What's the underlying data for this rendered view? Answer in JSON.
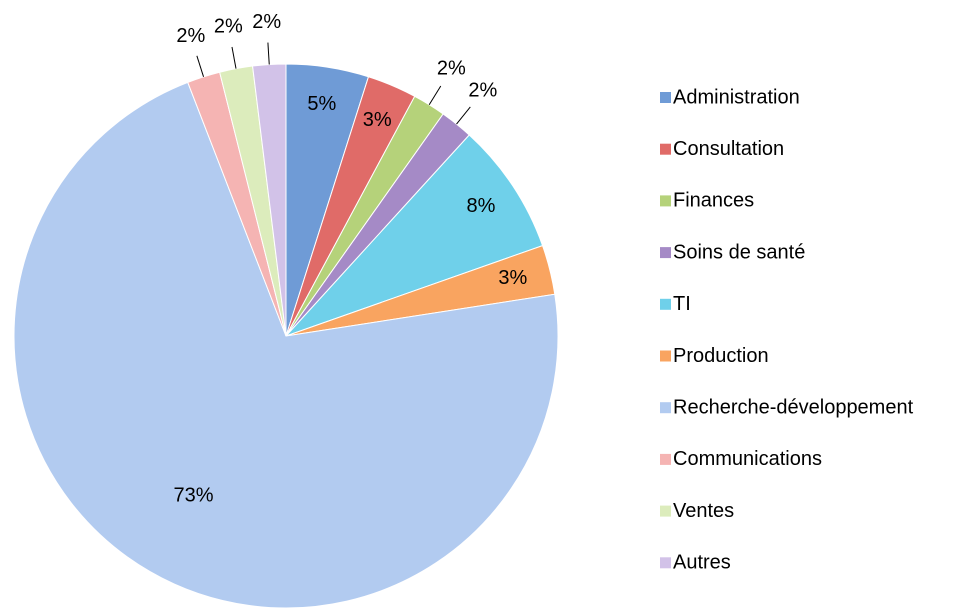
{
  "chart_data": {
    "type": "pie",
    "categories": [
      "Administration",
      "Consultation",
      "Finances",
      "Soins de santé",
      "TI",
      "Production",
      "Recherche-développement",
      "Communications",
      "Ventes",
      "Autres"
    ],
    "values": [
      5,
      3,
      2,
      2,
      8,
      3,
      73,
      2,
      2,
      2
    ],
    "value_labels": [
      "5%",
      "3%",
      "2%",
      "2%",
      "8%",
      "3%",
      "73%",
      "2%",
      "2%",
      "2%"
    ],
    "colors": [
      "#6f9bd6",
      "#e06b68",
      "#b5d27a",
      "#a58ac6",
      "#6fd0ea",
      "#f9a460",
      "#b2cbf0",
      "#f5b4b3",
      "#dcecbc",
      "#d2c2e8"
    ],
    "legend": "right"
  }
}
